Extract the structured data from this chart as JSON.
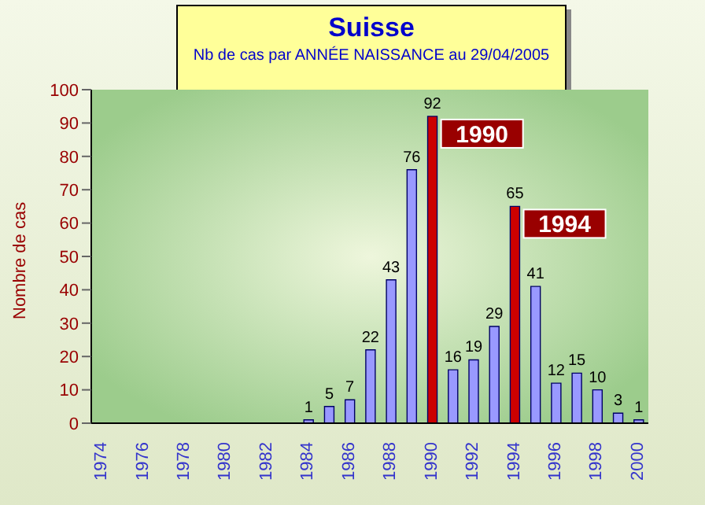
{
  "chart_data": {
    "type": "bar",
    "title": "Suisse",
    "subtitle": "Nb de cas par ANNÉE NAISSANCE au 29/04/2005",
    "ylabel": "Nombre de cas",
    "categories": [
      "1974",
      null,
      "1976",
      null,
      "1978",
      null,
      "1980",
      null,
      "1982",
      null,
      "1984",
      null,
      "1986",
      null,
      "1988",
      null,
      "1990",
      null,
      "1992",
      null,
      "1994",
      null,
      "1996",
      null,
      "1998",
      null,
      "2000"
    ],
    "values": [
      null,
      null,
      null,
      null,
      null,
      null,
      null,
      null,
      null,
      null,
      1,
      5,
      7,
      22,
      43,
      76,
      92,
      16,
      19,
      29,
      65,
      41,
      12,
      15,
      10,
      3,
      1
    ],
    "colors": [
      "#9999ff",
      "#9999ff",
      "#9999ff",
      "#9999ff",
      "#9999ff",
      "#9999ff",
      "#9999ff",
      "#9999ff",
      "#9999ff",
      "#9999ff",
      "#9999ff",
      "#9999ff",
      "#9999ff",
      "#9999ff",
      "#9999ff",
      "#9999ff",
      "#cc0000",
      "#9999ff",
      "#9999ff",
      "#9999ff",
      "#cc0000",
      "#9999ff",
      "#9999ff",
      "#9999ff",
      "#9999ff",
      "#9999ff",
      "#9999ff"
    ],
    "ylim": [
      0,
      100
    ],
    "yticks": [
      0,
      10,
      20,
      30,
      40,
      50,
      60,
      70,
      80,
      90,
      100
    ],
    "data_labels": true,
    "annotations": [
      {
        "text": "1990",
        "x": "1990",
        "y": 92
      },
      {
        "text": "1994",
        "x": "1994",
        "y": 65
      }
    ]
  }
}
